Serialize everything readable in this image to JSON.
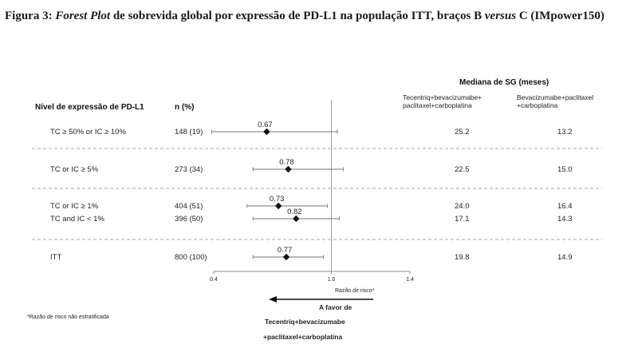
{
  "caption": {
    "prefix": "Figura 3: ",
    "italic1": "Forest Plot",
    "middle": " de sobrevida global por expressão de PD-L1 na população ITT, braços B ",
    "italic2": "versus",
    "suffix": " C (IMpower150)"
  },
  "chart_data": {
    "type": "forest",
    "col_headers": {
      "subgroup": "Nível de expressão de PD-L1",
      "n": "n (%)",
      "median_group": "Mediana de SG (meses)",
      "arm_b": [
        "Tecentriq+bevacizumabe+",
        "paclitaxel+carboplatina"
      ],
      "arm_c": [
        "Bevacizumabe+paclitaxel",
        "+carboplatina"
      ]
    },
    "xlim": [
      0.4,
      1.4
    ],
    "ticks": [
      {
        "value": 0.4,
        "label": "0.4"
      },
      {
        "value": 1.0,
        "label": "1.0"
      },
      {
        "value": 1.4,
        "label": "1.4"
      }
    ],
    "reference_line": 1.0,
    "xlabel": "Razão de risco*",
    "rows": [
      {
        "label": "TC ≥ 50% or IC ≥ 10%",
        "n": "148 (19)",
        "hr": 0.67,
        "hr_label": "0.67",
        "ci": [
          0.39,
          1.03
        ],
        "med_b": "25.2",
        "med_c": "13.2",
        "group": 0
      },
      {
        "label": "TC or IC ≥ 5%",
        "n": "273 (34)",
        "hr": 0.78,
        "hr_label": "0.78",
        "ci": [
          0.6,
          1.06
        ],
        "med_b": "22.5",
        "med_c": "15.0",
        "group": 1
      },
      {
        "label": "TC or IC ≥ 1%",
        "n": "404 (51)",
        "hr": 0.73,
        "hr_label": "0.73",
        "ci": [
          0.57,
          0.98
        ],
        "med_b": "24.0",
        "med_c": "16.4",
        "group": 2
      },
      {
        "label": "TC and IC < 1%",
        "n": "396 (50)",
        "hr": 0.82,
        "hr_label": "0.82",
        "ci": [
          0.6,
          1.04
        ],
        "med_b": "17.1",
        "med_c": "14.3",
        "group": 2
      },
      {
        "label": "ITT",
        "n": "800 (100)",
        "hr": 0.77,
        "hr_label": "0.77",
        "ci": [
          0.6,
          0.96
        ],
        "med_b": "19.8",
        "med_c": "14.9",
        "group": 3
      }
    ],
    "favor_text": "A favor de",
    "favor_arm": [
      "Tecentriq+bevacizumabe",
      "+paclitaxel+carboplatina"
    ],
    "footnote": "*Razão de risco não estratificada"
  }
}
